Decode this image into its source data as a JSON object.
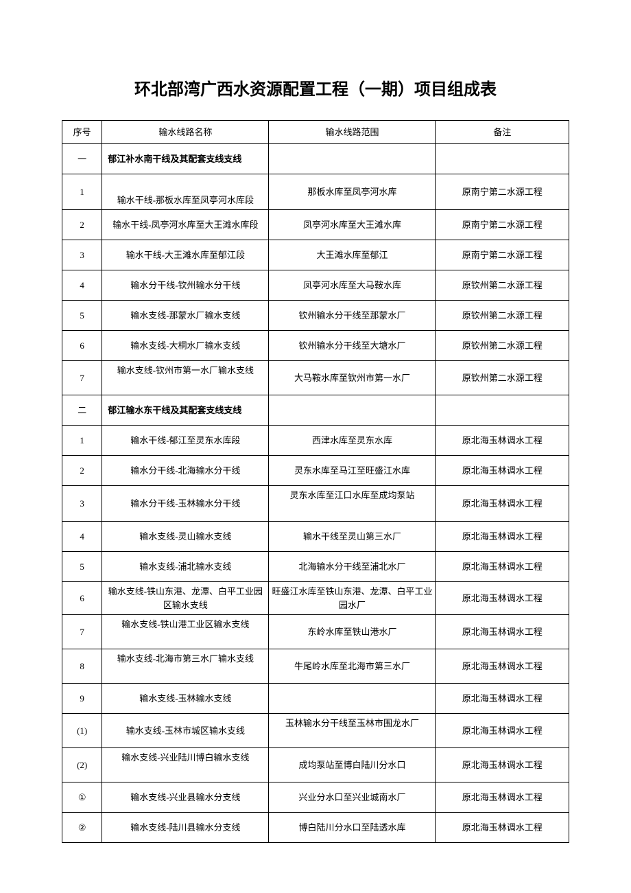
{
  "title": "环北部湾广西水资源配置工程（一期）项目组成表",
  "headers": {
    "seq": "序号",
    "name": "输水线路名称",
    "scope": "输水线路范围",
    "remark": "备注"
  },
  "sections": [
    {
      "seq": "一",
      "label": "郁江补水南干线及其配套支线支线",
      "rows": [
        {
          "seq": "1",
          "name": "输水干线-那板水库至凤亭河水库段",
          "scope": "那板水库至凤亭河水库",
          "remark": "原南宁第二水源工程",
          "tall": true,
          "nameBottom": true
        },
        {
          "seq": "2",
          "name": "输水干线-凤亭河水库至大王滩水库段",
          "scope": "凤亭河水库至大王滩水库",
          "remark": "原南宁第二水源工程"
        },
        {
          "seq": "3",
          "name": "输水干线-大王滩水库至郁江段",
          "scope": "大王滩水库至郁江",
          "remark": "原南宁第二水源工程"
        },
        {
          "seq": "4",
          "name": "输水分干线-钦州输水分干线",
          "scope": "凤亭河水库至大马鞍水库",
          "remark": "原钦州第二水源工程"
        },
        {
          "seq": "5",
          "name": "输水支线-那蒙水厂输水支线",
          "scope": "钦州输水分干线至那蒙水厂",
          "remark": "原钦州第二水源工程"
        },
        {
          "seq": "6",
          "name": "输水支线-大桐水厂输水支线",
          "scope": "钦州输水分干线至大塘水厂",
          "remark": "原钦州第二水源工程"
        },
        {
          "seq": "7",
          "name": "输水支线-钦州市第一水厂输水支线",
          "scope": "大马鞍水库至钦州市第一水厂",
          "remark": "原钦州第二水源工程",
          "tall2": true,
          "nameTop": true
        }
      ]
    },
    {
      "seq": "二",
      "label": "郁江输水东干线及其配套支线支线",
      "rows": [
        {
          "seq": "1",
          "name": "输水干线-郁江至灵东水库段",
          "scope": "西津水库至灵东水库",
          "remark": "原北海玉林调水工程"
        },
        {
          "seq": "2",
          "name": "输水分干线-北海输水分干线",
          "scope": "灵东水库至马江至旺盛江水库",
          "remark": "原北海玉林调水工程"
        },
        {
          "seq": "3",
          "name": "输水分干线-玉林输水分干线",
          "scope": "灵东水库至江口水库至成均泵站",
          "remark": "原北海玉林调水工程",
          "tall": true,
          "scopeTop": true
        },
        {
          "seq": "4",
          "name": "输水支线-灵山输水支线",
          "scope": "输水干线至灵山第三水厂",
          "remark": "原北海玉林调水工程"
        },
        {
          "seq": "5",
          "name": "输水支线-浦北输水支线",
          "scope": "北海输水分干线至浦北水厂",
          "remark": "原北海玉林调水工程"
        },
        {
          "seq": "6",
          "name": "输水支线-铁山东港、龙潭、白平工业园区输水支线",
          "scope": "旺盛江水库至铁山东港、龙潭、白平工业园水厂",
          "remark": "原北海玉林调水工程"
        },
        {
          "seq": "7",
          "name": "输水支线-铁山港工业区输水支线",
          "scope": "东岭水库至铁山港水厂",
          "remark": "原北海玉林调水工程",
          "tall2": true,
          "nameTop": true
        },
        {
          "seq": "8",
          "name": "输水支线-北海市第三水厂输水支线",
          "scope": "牛尾岭水库至北海市第三水厂",
          "remark": "原北海玉林调水工程",
          "tall2": true,
          "nameTop": true
        },
        {
          "seq": "9",
          "name": "输水支线-玉林输水支线",
          "scope": "",
          "remark": "原北海玉林调水工程"
        },
        {
          "seq": "(1)",
          "name": "输水支线-玉林市城区输水支线",
          "scope": "玉林输水分干线至玉林市围龙水厂",
          "remark": "原北海玉林调水工程",
          "tall2": true,
          "scopeTop": true
        },
        {
          "seq": "(2)",
          "name": "输水支线-兴业陆川博白输水支线",
          "scope": "成均泵站至博白陆川分水口",
          "remark": "原北海玉林调水工程",
          "tall2": true,
          "nameTop": true
        },
        {
          "seq": "①",
          "name": "输水支线-兴业县输水分支线",
          "scope": "兴业分水口至兴业城南水厂",
          "remark": "原北海玉林调水工程"
        },
        {
          "seq": "②",
          "name": "输水支线-陆川县输水分支线",
          "scope": "博白陆川分水口至陆透水库",
          "remark": "原北海玉林调水工程"
        }
      ]
    }
  ]
}
